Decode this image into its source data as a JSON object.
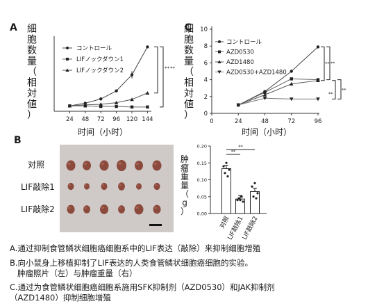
{
  "chart_data": [
    {
      "panel": "A",
      "type": "line",
      "ylabel_chars": [
        "細",
        "胞",
        "数",
        "量",
        "（",
        "相",
        "対",
        "値",
        "）"
      ],
      "xlabel": "时间（小时）",
      "x": [
        24,
        48,
        72,
        96,
        120,
        144
      ],
      "xlim": [
        0,
        150
      ],
      "ylim": [
        0,
        14
      ],
      "y_ticks_shown": false,
      "series": [
        {
          "name": "コントロール",
          "marker": "circle",
          "values": [
            1.0,
            1.5,
            2.3,
            3.8,
            6.8,
            12.0
          ]
        },
        {
          "name": "LIFノックダウン1",
          "marker": "square",
          "values": [
            1.0,
            1.0,
            0.9,
            0.9,
            0.8,
            0.8
          ]
        },
        {
          "name": "LIFノックダウン2",
          "marker": "triangle",
          "values": [
            1.0,
            1.2,
            1.3,
            1.6,
            2.2,
            3.4
          ]
        }
      ],
      "significance": [
        "**",
        "**"
      ]
    },
    {
      "panel": "C",
      "type": "line",
      "ylabel_chars": [
        "細",
        "胞",
        "数",
        "量",
        "（",
        "相",
        "対",
        "値",
        "）"
      ],
      "xlabel": "时间（小时）",
      "x": [
        0,
        24,
        48,
        72,
        96
      ],
      "y_ticks": [
        0,
        2,
        4,
        6,
        8,
        10
      ],
      "ylim": [
        0,
        10
      ],
      "series": [
        {
          "name": "コントロール",
          "marker": "circle",
          "values": [
            null,
            1.0,
            2.6,
            5.0,
            7.9
          ]
        },
        {
          "name": "AZD0530",
          "marker": "square",
          "values": [
            null,
            1.0,
            2.5,
            4.1,
            4.0
          ]
        },
        {
          "name": "AZD1480",
          "marker": "triangle",
          "values": [
            null,
            1.0,
            2.2,
            3.5,
            3.9
          ]
        },
        {
          "name": "AZD0530+AZD1480",
          "marker": "triangle-down",
          "values": [
            null,
            1.0,
            1.8,
            1.7,
            1.7
          ]
        }
      ],
      "significance": [
        "**",
        "**",
        "**",
        "**"
      ]
    },
    {
      "panel": "B-right",
      "type": "bar",
      "ylabel_chars": [
        "肿",
        "瘤",
        "重",
        "量",
        "（",
        "g",
        "）"
      ],
      "y_ticks": [
        0.0,
        0.05,
        0.1,
        0.15,
        0.2
      ],
      "ylim": [
        0,
        0.2
      ],
      "categories": [
        "对照",
        "LIF敲除1",
        "LIF敲除2"
      ],
      "values": [
        0.133,
        0.043,
        0.065
      ],
      "significance": [
        "**",
        "**"
      ]
    }
  ],
  "panel_labels": {
    "a": "A",
    "b": "B",
    "c": "C"
  },
  "photo": {
    "row_labels": [
      "对照",
      "LIF敲除1",
      "LIF敲除2"
    ],
    "background_color": "#cfcac7",
    "tissue_color": "#8c4a3c"
  },
  "caption": {
    "line1": "A.通过抑制食管鳞状细胞癌细胞系中的LIF表达（敲除）来抑制细胞增殖",
    "line2": "B.向小鼠身上移植抑制了LIF表达的人类食管鳞状细胞癌细胞的实验。",
    "line3": "肿瘤照片（左）与肿瘤重量（右）",
    "line4": "C.通过为食管鳞状细胞癌细胞系施用SFK抑制剂（AZD0530）和JAK抑制剂",
    "line5": "（AZD1480）抑制细胞增殖"
  }
}
